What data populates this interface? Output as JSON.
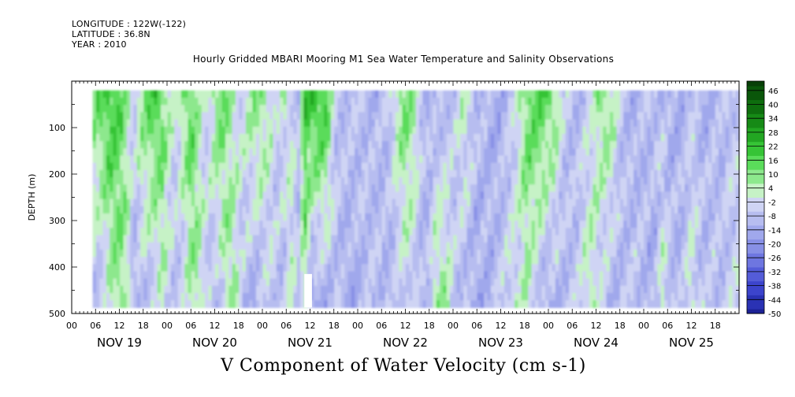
{
  "header": {
    "longitude": "LONGITUDE : 122W(-122)",
    "latitude": "LATITUDE : 36.8N",
    "year": "YEAR : 2010"
  },
  "chart_data": {
    "type": "heatmap",
    "title": "Hourly Gridded MBARI Mooring M1 Sea Water Temperature and Salinity Observations",
    "caption": "V Component of Water Velocity (cm s-1)",
    "ylabel": "DEPTH (m)",
    "ylim": [
      500,
      0
    ],
    "yticks": [
      100,
      200,
      300,
      400,
      500
    ],
    "x_range_days": [
      0,
      7
    ],
    "x_hour_ticks": [
      "00",
      "06",
      "12",
      "18",
      "00",
      "06",
      "12",
      "18",
      "00",
      "06",
      "12",
      "18",
      "00",
      "06",
      "12",
      "18",
      "00",
      "06",
      "12",
      "18",
      "00",
      "06",
      "12",
      "18",
      "00",
      "06",
      "12",
      "18"
    ],
    "x_day_labels": [
      "NOV 19",
      "NOV 20",
      "NOV 21",
      "NOV 22",
      "NOV 23",
      "NOV 24",
      "NOV 25"
    ],
    "data_start_day": 0.22,
    "data_depth_range": [
      20,
      487
    ],
    "gap": {
      "day_from": 2.44,
      "day_to": 2.52,
      "depth_from": 415,
      "depth_to": 487
    },
    "colorbar_labels": [
      "46",
      "40",
      "34",
      "28",
      "22",
      "16",
      "10",
      "4",
      "-2",
      "-8",
      "-14",
      "-20",
      "-26",
      "-32",
      "-38",
      "-44",
      "-50"
    ],
    "colorbar_range": [
      -50,
      50
    ],
    "palette_positive": [
      "#c6f2c6",
      "#8de88d",
      "#5adc5a",
      "#36c436",
      "#22a622",
      "#168a16",
      "#0e6e0e",
      "#0a560a",
      "#083f08"
    ],
    "palette_negative": [
      "#cfd4f4",
      "#b7bdf0",
      "#a0a8ec",
      "#8890e6",
      "#6e76e0",
      "#545cd8",
      "#3c44cc",
      "#2a32b4",
      "#1c2296",
      "#121874",
      "#0a0e55",
      "#05083a"
    ],
    "profile_days": [
      0.22,
      0.28,
      0.35,
      0.42,
      0.5,
      0.58,
      0.65,
      0.72,
      0.8,
      0.88,
      0.95,
      1.02,
      1.1,
      1.18,
      1.25,
      1.32,
      1.4,
      1.48,
      1.55,
      1.62,
      1.7,
      1.78,
      1.85,
      1.92,
      2.0,
      2.08,
      2.15,
      2.22,
      2.3,
      2.38,
      2.44,
      2.52,
      2.6,
      2.68,
      2.75,
      2.82,
      2.9,
      2.98,
      3.05,
      3.12,
      3.2,
      3.28,
      3.35,
      3.42,
      3.5,
      3.58,
      3.65,
      3.72,
      3.8,
      3.88,
      3.95,
      4.02,
      4.1,
      4.18,
      4.25,
      4.32,
      4.4,
      4.48,
      4.55,
      4.62,
      4.7,
      4.78,
      4.85,
      4.92,
      5.0,
      5.08,
      5.15,
      5.22,
      5.3,
      5.38,
      5.45,
      5.52,
      5.6,
      5.68,
      5.75,
      5.82,
      5.9,
      5.98,
      6.05,
      6.12,
      6.2,
      6.28,
      6.35,
      6.42,
      6.5,
      6.58,
      6.65,
      6.72,
      6.8,
      6.88,
      6.95
    ],
    "profile_surface_v": [
      10,
      14,
      18,
      20,
      16,
      6,
      -4,
      8,
      14,
      18,
      14,
      4,
      -2,
      10,
      16,
      6,
      -4,
      6,
      14,
      10,
      2,
      -2,
      4,
      10,
      8,
      2,
      -6,
      2,
      -2,
      -8,
      20,
      22,
      22,
      18,
      -4,
      -8,
      -6,
      -8,
      -6,
      -10,
      -12,
      -8,
      -4,
      8,
      12,
      10,
      -2,
      -10,
      -12,
      -10,
      -8,
      -6,
      4,
      -2,
      -8,
      -10,
      -12,
      -14,
      -10,
      -8,
      4,
      14,
      16,
      18,
      14,
      10,
      -4,
      -8,
      -10,
      -6,
      -4,
      8,
      10,
      6,
      -6,
      -10,
      -12,
      -10,
      -8,
      -6,
      -10,
      -14,
      -12,
      -10,
      -8,
      -10,
      -12,
      -10,
      -10,
      -8,
      -6
    ],
    "profile_deep_v": [
      -8,
      -10,
      -6,
      2,
      8,
      6,
      -14,
      -10,
      -8,
      -6,
      2,
      -4,
      -8,
      -6,
      4,
      8,
      -2,
      -10,
      -8,
      4,
      6,
      -6,
      -10,
      -14,
      -8,
      -4,
      -6,
      -10,
      2,
      -8,
      8,
      -18,
      -14,
      -12,
      -8,
      -10,
      -14,
      -12,
      -10,
      -8,
      -6,
      -10,
      -12,
      -8,
      -4,
      -6,
      -10,
      -12,
      6,
      8,
      4,
      -6,
      -10,
      -12,
      -14,
      -12,
      -10,
      -6,
      -4,
      2,
      -2,
      4,
      -4,
      -10,
      -14,
      -12,
      -10,
      -8,
      -6,
      2,
      6,
      -4,
      -8,
      -12,
      -10,
      -8,
      -6,
      -8,
      -12,
      -14,
      4,
      -6,
      -10,
      -8,
      4,
      -6,
      -8,
      -6,
      -8,
      -6,
      -4
    ]
  }
}
